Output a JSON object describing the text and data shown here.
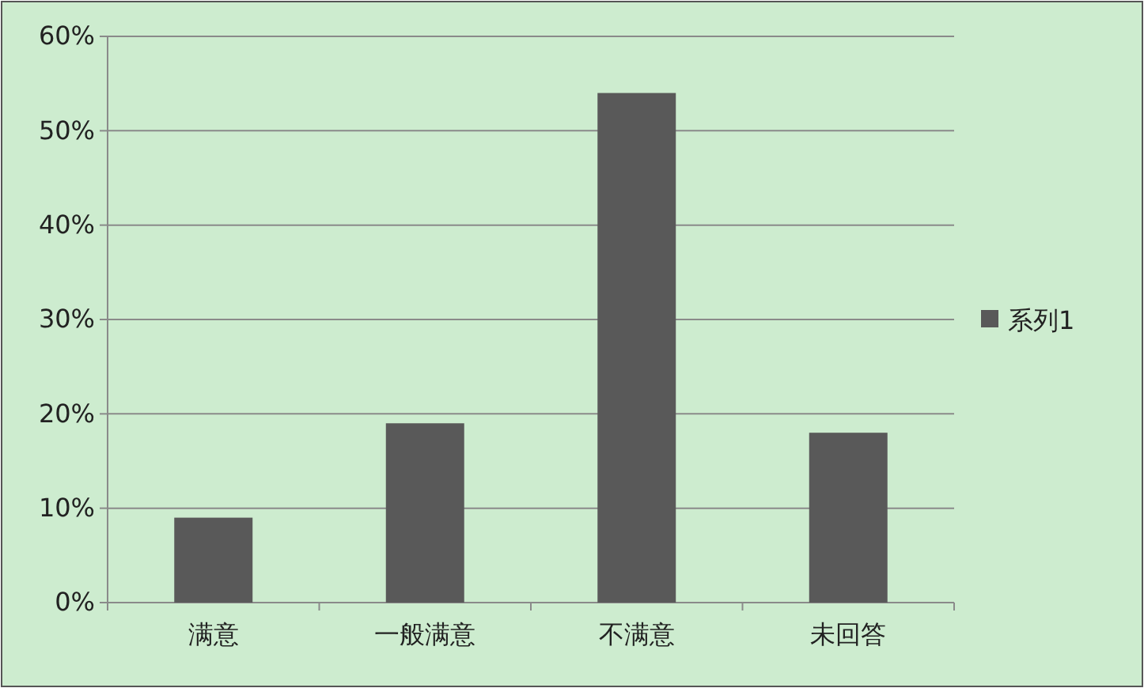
{
  "chart_data": {
    "type": "bar",
    "categories": [
      "满意",
      "一般满意",
      "不满意",
      "未回答"
    ],
    "series": [
      {
        "name": "系列1",
        "color": "#595959",
        "values": [
          9,
          19,
          54,
          18
        ]
      }
    ],
    "ylim": [
      0,
      60
    ],
    "yticks": [
      {
        "value": 0,
        "label": "0%"
      },
      {
        "value": 10,
        "label": "10%"
      },
      {
        "value": 20,
        "label": "20%"
      },
      {
        "value": 30,
        "label": "30%"
      },
      {
        "value": 40,
        "label": "40%"
      },
      {
        "value": 50,
        "label": "50%"
      },
      {
        "value": 60,
        "label": "60%"
      }
    ],
    "grid": "y",
    "legend": "right"
  }
}
